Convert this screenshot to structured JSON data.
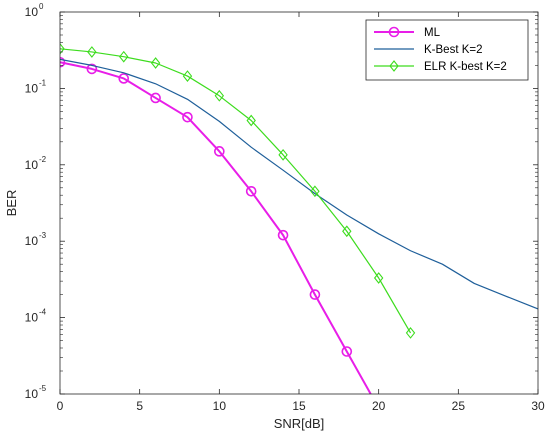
{
  "chart_data": {
    "type": "line",
    "xlabel": "SNR[dB]",
    "ylabel": "BER",
    "xlim": [
      0,
      30
    ],
    "ylim": [
      1e-05,
      1
    ],
    "yscale": "log",
    "grid": false,
    "legend_position": "top-right",
    "x_ticks": [
      0,
      5,
      10,
      15,
      20,
      25,
      30
    ],
    "x_tick_labels": [
      "0",
      "5",
      "10",
      "15",
      "20",
      "25",
      "30"
    ],
    "y_ticks": [
      {
        "value": 1,
        "base": "10",
        "exp": "0"
      },
      {
        "value": 0.1,
        "base": "10",
        "exp": "-1"
      },
      {
        "value": 0.01,
        "base": "10",
        "exp": "-2"
      },
      {
        "value": 0.001,
        "base": "10",
        "exp": "-3"
      },
      {
        "value": 0.0001,
        "base": "10",
        "exp": "-4"
      },
      {
        "value": 1e-05,
        "base": "10",
        "exp": "-5"
      }
    ],
    "series": [
      {
        "name": "ML",
        "color": "#e81ee8",
        "marker": "circle",
        "x": [
          0,
          2,
          4,
          6,
          8,
          10,
          12,
          14,
          16,
          18,
          19.5
        ],
        "y": [
          0.22,
          0.18,
          0.135,
          0.075,
          0.042,
          0.015,
          0.0045,
          0.0012,
          0.0002,
          3.6e-05,
          1e-05
        ],
        "marker_x": [
          0,
          2,
          4,
          6,
          8,
          10,
          12,
          14,
          16,
          18
        ]
      },
      {
        "name": "K-Best K=2",
        "color": "#1f5f9a",
        "marker": "none",
        "x": [
          0,
          2,
          4,
          6,
          8,
          10,
          12,
          14,
          16,
          18,
          20,
          22,
          24,
          26,
          28,
          30
        ],
        "y": [
          0.24,
          0.2,
          0.16,
          0.115,
          0.072,
          0.037,
          0.017,
          0.0085,
          0.0042,
          0.0022,
          0.00125,
          0.00075,
          0.0005,
          0.00028,
          0.00019,
          0.00013
        ],
        "marker_x": []
      },
      {
        "name": "ELR K-best K=2",
        "color": "#3ddc1e",
        "marker": "diamond",
        "x": [
          0,
          2,
          4,
          6,
          8,
          10,
          12,
          14,
          16,
          18,
          20,
          22
        ],
        "y": [
          0.33,
          0.3,
          0.26,
          0.215,
          0.145,
          0.08,
          0.038,
          0.0135,
          0.0045,
          0.00135,
          0.00033,
          6.3e-05
        ],
        "marker_x": [
          0,
          2,
          4,
          6,
          8,
          10,
          12,
          14,
          16,
          18,
          20,
          22
        ]
      }
    ]
  }
}
